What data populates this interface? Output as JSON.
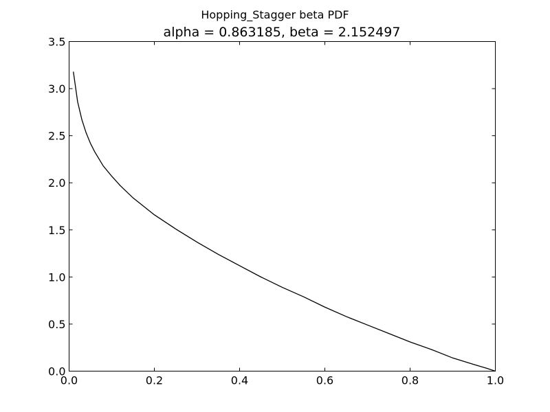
{
  "chart_data": {
    "type": "line",
    "suptitle": "Hopping_Stagger beta PDF",
    "title": "alpha = 0.863185, beta = 2.152497",
    "xlabel": "",
    "ylabel": "",
    "xlim": [
      0.0,
      1.0
    ],
    "ylim": [
      0.0,
      3.5
    ],
    "xticks": [
      0.0,
      0.2,
      0.4,
      0.6,
      0.8,
      1.0
    ],
    "xtick_labels": [
      "0.0",
      "0.2",
      "0.4",
      "0.6",
      "0.8",
      "1.0"
    ],
    "yticks": [
      0.0,
      0.5,
      1.0,
      1.5,
      2.0,
      2.5,
      3.0,
      3.5
    ],
    "ytick_labels": [
      "0.0",
      "0.5",
      "1.0",
      "1.5",
      "2.0",
      "2.5",
      "3.0",
      "3.5"
    ],
    "grid": false,
    "line_color": "#000000",
    "series": [
      {
        "x": [
          0.01,
          0.02,
          0.03,
          0.04,
          0.05,
          0.06,
          0.08,
          0.1,
          0.12,
          0.15,
          0.2,
          0.25,
          0.3,
          0.35,
          0.4,
          0.45,
          0.5,
          0.55,
          0.6,
          0.65,
          0.7,
          0.75,
          0.8,
          0.85,
          0.9,
          0.95,
          0.98,
          1.0
        ],
        "y": [
          3.18,
          2.86,
          2.67,
          2.53,
          2.42,
          2.33,
          2.18,
          2.07,
          1.97,
          1.84,
          1.66,
          1.51,
          1.37,
          1.24,
          1.12,
          1.0,
          0.89,
          0.79,
          0.68,
          0.58,
          0.49,
          0.4,
          0.31,
          0.23,
          0.14,
          0.07,
          0.03,
          0.0
        ]
      }
    ]
  }
}
